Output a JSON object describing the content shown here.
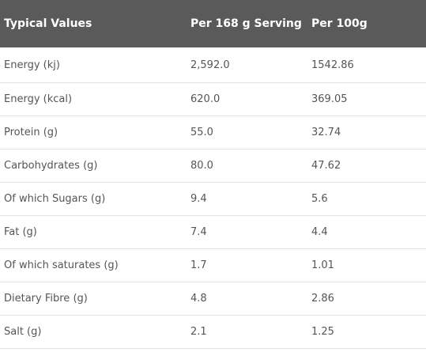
{
  "table": {
    "headers": [
      "Typical Values",
      "Per 168 g Serving",
      "Per 100g"
    ],
    "rows": [
      [
        "Energy (kj)",
        "2,592.0",
        "1542.86"
      ],
      [
        "Energy (kcal)",
        "620.0",
        "369.05"
      ],
      [
        "Protein (g)",
        "55.0",
        "32.74"
      ],
      [
        "Carbohydrates (g)",
        "80.0",
        "47.62"
      ],
      [
        "Of which Sugars (g)",
        "9.4",
        "5.6"
      ],
      [
        "Fat (g)",
        "7.4",
        "4.4"
      ],
      [
        "Of which saturates (g)",
        "1.7",
        "1.01"
      ],
      [
        "Dietary Fibre (g)",
        "4.8",
        "2.86"
      ],
      [
        "Salt (g)",
        "2.1",
        "1.25"
      ]
    ]
  }
}
